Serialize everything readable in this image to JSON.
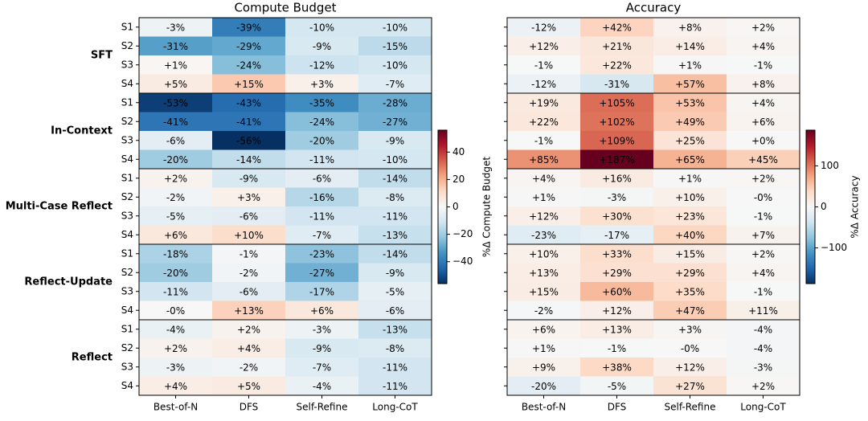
{
  "chart_data": [
    {
      "type": "heatmap",
      "title": "Compute Budget",
      "colorbar_label": "%Δ Compute Budget",
      "colormap": "RdBu_r",
      "columns": [
        "Best-of-N",
        "DFS",
        "Self-Refine",
        "Long-CoT"
      ],
      "groups": [
        "SFT",
        "In-Context",
        "Multi-Case Reflect",
        "Reflect-Update",
        "Reflect"
      ],
      "rows": [
        "S1",
        "S2",
        "S3",
        "S4",
        "S1",
        "S2",
        "S3",
        "S4",
        "S1",
        "S2",
        "S3",
        "S4",
        "S1",
        "S2",
        "S3",
        "S4",
        "S1",
        "S2",
        "S3",
        "S4"
      ],
      "clim": [
        -56,
        56
      ],
      "cticks": [
        {
          "value": -40,
          "label": "−40"
        },
        {
          "value": -20,
          "label": "−20"
        },
        0,
        20,
        40
      ],
      "values": [
        [
          -3,
          -39,
          -10,
          -10
        ],
        [
          -31,
          -29,
          -9,
          -15
        ],
        [
          1,
          -24,
          -12,
          -10
        ],
        [
          5,
          15,
          3,
          -7
        ],
        [
          -53,
          -43,
          -35,
          -28
        ],
        [
          -41,
          -41,
          -24,
          -27
        ],
        [
          -6,
          -56,
          -20,
          -9
        ],
        [
          -20,
          -14,
          -11,
          -10
        ],
        [
          2,
          -9,
          -6,
          -14
        ],
        [
          -2,
          3,
          -16,
          -8
        ],
        [
          -5,
          -6,
          -11,
          -11
        ],
        [
          6,
          10,
          -7,
          -13
        ],
        [
          -18,
          -1,
          -23,
          -14
        ],
        [
          -20,
          -2,
          -27,
          -9
        ],
        [
          -11,
          -6,
          -17,
          -5
        ],
        [
          0,
          13,
          6,
          -6
        ],
        [
          -4,
          2,
          -3,
          -13
        ],
        [
          2,
          4,
          -9,
          -8
        ],
        [
          -3,
          -2,
          -7,
          -11
        ],
        [
          4,
          5,
          -4,
          -11
        ]
      ],
      "value_labels": [
        [
          "-3%",
          "-39%",
          "-10%",
          "-10%"
        ],
        [
          "-31%",
          "-29%",
          "-9%",
          "-15%"
        ],
        [
          "+1%",
          "-24%",
          "-12%",
          "-10%"
        ],
        [
          "+5%",
          "+15%",
          "+3%",
          "-7%"
        ],
        [
          "-53%",
          "-43%",
          "-35%",
          "-28%"
        ],
        [
          "-41%",
          "-41%",
          "-24%",
          "-27%"
        ],
        [
          "-6%",
          "-56%",
          "-20%",
          "-9%"
        ],
        [
          "-20%",
          "-14%",
          "-11%",
          "-10%"
        ],
        [
          "+2%",
          "-9%",
          "-6%",
          "-14%"
        ],
        [
          "-2%",
          "+3%",
          "-16%",
          "-8%"
        ],
        [
          "-5%",
          "-6%",
          "-11%",
          "-11%"
        ],
        [
          "+6%",
          "+10%",
          "-7%",
          "-13%"
        ],
        [
          "-18%",
          "-1%",
          "-23%",
          "-14%"
        ],
        [
          "-20%",
          "-2%",
          "-27%",
          "-9%"
        ],
        [
          "-11%",
          "-6%",
          "-17%",
          "-5%"
        ],
        [
          "-0%",
          "+13%",
          "+6%",
          "-6%"
        ],
        [
          "-4%",
          "+2%",
          "-3%",
          "-13%"
        ],
        [
          "+2%",
          "+4%",
          "-9%",
          "-8%"
        ],
        [
          "-3%",
          "-2%",
          "-7%",
          "-11%"
        ],
        [
          "+4%",
          "+5%",
          "-4%",
          "-11%"
        ]
      ]
    },
    {
      "type": "heatmap",
      "title": "Accuracy",
      "colorbar_label": "%Δ Accuracy",
      "colormap": "RdBu_r",
      "columns": [
        "Best-of-N",
        "DFS",
        "Self-Refine",
        "Long-CoT"
      ],
      "clim": [
        -187,
        187
      ],
      "cticks": [
        {
          "value": -100,
          "label": "−100"
        },
        0,
        100
      ],
      "values": [
        [
          -12,
          42,
          8,
          2
        ],
        [
          12,
          21,
          14,
          4
        ],
        [
          -1,
          22,
          1,
          -1
        ],
        [
          -12,
          -31,
          57,
          8
        ],
        [
          19,
          105,
          53,
          4
        ],
        [
          22,
          102,
          49,
          6
        ],
        [
          -1,
          109,
          25,
          0
        ],
        [
          85,
          187,
          65,
          45
        ],
        [
          4,
          16,
          1,
          2
        ],
        [
          1,
          -3,
          10,
          0
        ],
        [
          12,
          30,
          23,
          -1
        ],
        [
          -23,
          -17,
          40,
          7
        ],
        [
          10,
          33,
          15,
          2
        ],
        [
          13,
          29,
          29,
          4
        ],
        [
          15,
          60,
          35,
          -1
        ],
        [
          -2,
          12,
          47,
          11
        ],
        [
          6,
          13,
          3,
          -4
        ],
        [
          1,
          -1,
          0,
          -4
        ],
        [
          9,
          38,
          12,
          -3
        ],
        [
          -20,
          -5,
          27,
          2
        ]
      ],
      "value_labels": [
        [
          "-12%",
          "+42%",
          "+8%",
          "+2%"
        ],
        [
          "+12%",
          "+21%",
          "+14%",
          "+4%"
        ],
        [
          "-1%",
          "+22%",
          "+1%",
          "-1%"
        ],
        [
          "-12%",
          "-31%",
          "+57%",
          "+8%"
        ],
        [
          "+19%",
          "+105%",
          "+53%",
          "+4%"
        ],
        [
          "+22%",
          "+102%",
          "+49%",
          "+6%"
        ],
        [
          "-1%",
          "+109%",
          "+25%",
          "+0%"
        ],
        [
          "+85%",
          "+187%",
          "+65%",
          "+45%"
        ],
        [
          "+4%",
          "+16%",
          "+1%",
          "+2%"
        ],
        [
          "+1%",
          "-3%",
          "+10%",
          "-0%"
        ],
        [
          "+12%",
          "+30%",
          "+23%",
          "-1%"
        ],
        [
          "-23%",
          "-17%",
          "+40%",
          "+7%"
        ],
        [
          "+10%",
          "+33%",
          "+15%",
          "+2%"
        ],
        [
          "+13%",
          "+29%",
          "+29%",
          "+4%"
        ],
        [
          "+15%",
          "+60%",
          "+35%",
          "-1%"
        ],
        [
          "-2%",
          "+12%",
          "+47%",
          "+11%"
        ],
        [
          "+6%",
          "+13%",
          "+3%",
          "-4%"
        ],
        [
          "+1%",
          "-1%",
          "-0%",
          "-4%"
        ],
        [
          "+9%",
          "+38%",
          "+12%",
          "-3%"
        ],
        [
          "-20%",
          "-5%",
          "+27%",
          "+2%"
        ]
      ]
    }
  ]
}
